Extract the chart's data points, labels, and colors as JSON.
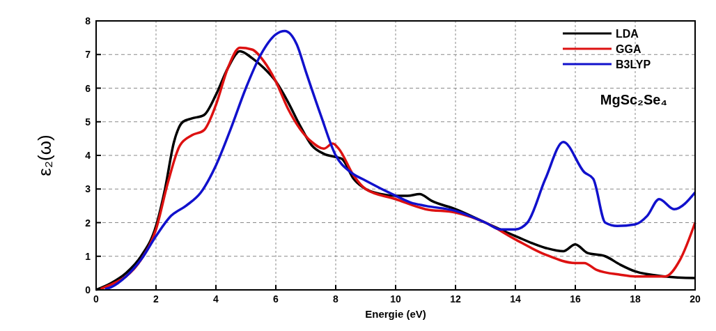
{
  "chart_data": {
    "type": "line",
    "xlabel": "Energie (eV)",
    "ylabel": "ε₂(ω)",
    "annotations": [
      "MgSc₂Se₄"
    ],
    "xlim": [
      0,
      20
    ],
    "xticks": [
      0,
      2,
      4,
      6,
      8,
      10,
      12,
      14,
      16,
      18,
      20
    ],
    "ylim": [
      0,
      8
    ],
    "yticks": [
      0,
      1,
      2,
      3,
      4,
      5,
      6,
      7,
      8
    ],
    "grid": true,
    "legend": "top right",
    "series": [
      {
        "name": "LDA",
        "color": "#000000",
        "x": [
          0,
          0.5,
          1,
          1.5,
          2,
          2.3,
          2.6,
          2.9,
          3.2,
          3.6,
          4,
          4.4,
          4.8,
          5.2,
          5.6,
          6,
          6.4,
          6.8,
          7.2,
          7.6,
          8,
          8.2,
          8.6,
          9,
          9.5,
          10,
          10.4,
          10.8,
          11.2,
          12,
          13,
          14,
          15,
          15.6,
          16,
          16.4,
          17,
          17.5,
          18,
          19,
          20
        ],
        "values": [
          0,
          0.2,
          0.5,
          1.0,
          1.9,
          3.0,
          4.4,
          5.0,
          5.1,
          5.2,
          5.8,
          6.6,
          7.1,
          6.9,
          6.6,
          6.2,
          5.6,
          4.9,
          4.3,
          4.05,
          3.95,
          3.9,
          3.3,
          3.0,
          2.85,
          2.8,
          2.8,
          2.85,
          2.65,
          2.4,
          2.0,
          1.6,
          1.25,
          1.15,
          1.35,
          1.1,
          1.0,
          0.75,
          0.55,
          0.4,
          0.35
        ]
      },
      {
        "name": "GGA",
        "color": "#dd1111",
        "x": [
          0.15,
          0.6,
          1,
          1.5,
          2,
          2.4,
          2.8,
          3.2,
          3.6,
          4,
          4.4,
          4.8,
          5.2,
          5.6,
          6,
          6.4,
          6.8,
          7.2,
          7.6,
          7.9,
          8.1,
          8.6,
          9,
          10,
          11,
          12,
          13,
          14,
          15,
          16,
          16.3,
          16.7,
          17.5,
          18,
          19,
          19.5,
          20
        ],
        "values": [
          0.03,
          0.2,
          0.4,
          0.9,
          1.8,
          3.2,
          4.3,
          4.6,
          4.75,
          5.5,
          6.6,
          7.2,
          7.15,
          6.8,
          6.2,
          5.4,
          4.8,
          4.4,
          4.2,
          4.35,
          4.2,
          3.4,
          3.0,
          2.7,
          2.4,
          2.3,
          2.0,
          1.5,
          1.05,
          0.8,
          0.8,
          0.6,
          0.45,
          0.4,
          0.4,
          0.9,
          2.0
        ]
      },
      {
        "name": "B3LYP",
        "color": "#1111cc",
        "x": [
          0.3,
          0.5,
          1,
          1.5,
          2,
          2.5,
          3,
          3.5,
          4,
          4.5,
          5,
          5.5,
          6,
          6.3,
          6.7,
          7,
          7.5,
          8,
          8.5,
          9,
          10,
          10.5,
          11,
          12,
          13,
          13.5,
          14,
          14.4,
          15,
          15.6,
          16.3,
          16.6,
          17,
          17.4,
          18,
          18.4,
          18.8,
          19.3,
          20
        ],
        "values": [
          0.02,
          0.08,
          0.4,
          0.9,
          1.6,
          2.2,
          2.5,
          2.9,
          3.7,
          4.8,
          6.0,
          7.0,
          7.6,
          7.7,
          7.3,
          6.5,
          5.2,
          4.0,
          3.5,
          3.25,
          2.8,
          2.6,
          2.5,
          2.35,
          2.0,
          1.8,
          1.8,
          2.0,
          3.3,
          4.4,
          3.5,
          3.3,
          2.0,
          1.9,
          1.95,
          2.2,
          2.7,
          2.4,
          2.9
        ]
      }
    ]
  }
}
